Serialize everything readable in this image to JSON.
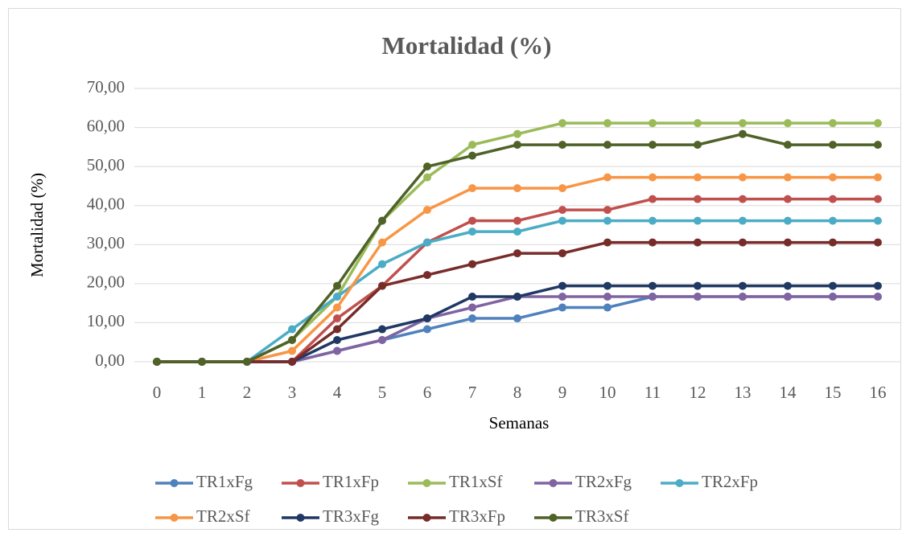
{
  "chart_data": {
    "type": "line",
    "title": "Mortalidad  (%)",
    "x_label": "Semanas",
    "y_label": "Mortalidad  (%)",
    "categories": [
      "0",
      "1",
      "2",
      "3",
      "4",
      "5",
      "6",
      "7",
      "8",
      "9",
      "10",
      "11",
      "12",
      "13",
      "14",
      "15",
      "16"
    ],
    "ylim": [
      0,
      70
    ],
    "yticks": [
      {
        "value": 0,
        "label": "0,00"
      },
      {
        "value": 10,
        "label": "10,00"
      },
      {
        "value": 20,
        "label": "20,00"
      },
      {
        "value": 30,
        "label": "30,00"
      },
      {
        "value": 40,
        "label": "40,00"
      },
      {
        "value": 50,
        "label": "50,00"
      },
      {
        "value": 60,
        "label": "60,00"
      },
      {
        "value": 70,
        "label": "70,00"
      }
    ],
    "grid": true,
    "legend": "bottom",
    "series": [
      {
        "name": "TR1xFg",
        "color": "#4f81bd",
        "values": [
          0,
          0,
          0,
          0,
          2.78,
          5.56,
          8.33,
          11.11,
          11.11,
          13.89,
          13.89,
          16.67,
          16.67,
          16.67,
          16.67,
          16.67,
          16.67
        ]
      },
      {
        "name": "TR1xFp",
        "color": "#c0504d",
        "values": [
          0,
          0,
          0,
          0,
          11.11,
          19.44,
          30.56,
          36.11,
          36.11,
          38.89,
          38.89,
          41.67,
          41.67,
          41.67,
          41.67,
          41.67,
          41.67
        ]
      },
      {
        "name": "TR1xSf",
        "color": "#9bbb59",
        "values": [
          0,
          0,
          0,
          5.56,
          16.67,
          36.11,
          47.22,
          55.56,
          58.33,
          61.11,
          61.11,
          61.11,
          61.11,
          61.11,
          61.11,
          61.11,
          61.11
        ]
      },
      {
        "name": "TR2xFg",
        "color": "#8064a2",
        "values": [
          0,
          0,
          0,
          0,
          2.78,
          5.56,
          11.11,
          13.89,
          16.67,
          16.67,
          16.67,
          16.67,
          16.67,
          16.67,
          16.67,
          16.67,
          16.67
        ]
      },
      {
        "name": "TR2xFp",
        "color": "#4bacc6",
        "values": [
          0,
          0,
          0,
          8.33,
          16.67,
          25,
          30.56,
          33.33,
          33.33,
          36.11,
          36.11,
          36.11,
          36.11,
          36.11,
          36.11,
          36.11,
          36.11
        ]
      },
      {
        "name": "TR2xSf",
        "color": "#f79646",
        "values": [
          0,
          0,
          0,
          2.78,
          13.89,
          30.56,
          38.89,
          44.44,
          44.44,
          44.44,
          47.22,
          47.22,
          47.22,
          47.22,
          47.22,
          47.22,
          47.22
        ]
      },
      {
        "name": "TR3xFg",
        "color": "#1f3864",
        "values": [
          0,
          0,
          0,
          0,
          5.56,
          8.33,
          11.11,
          16.67,
          16.67,
          19.44,
          19.44,
          19.44,
          19.44,
          19.44,
          19.44,
          19.44,
          19.44
        ]
      },
      {
        "name": "TR3xFp",
        "color": "#772c2a",
        "values": [
          0,
          0,
          0,
          0,
          8.33,
          19.44,
          22.22,
          25,
          27.78,
          27.78,
          30.56,
          30.56,
          30.56,
          30.56,
          30.56,
          30.56,
          30.56
        ]
      },
      {
        "name": "TR3xSf",
        "color": "#4f6228",
        "values": [
          0,
          0,
          0,
          5.56,
          19.44,
          36.11,
          50,
          52.78,
          55.56,
          55.56,
          55.56,
          55.56,
          55.56,
          58.33,
          55.56,
          55.56,
          55.56
        ]
      }
    ]
  }
}
